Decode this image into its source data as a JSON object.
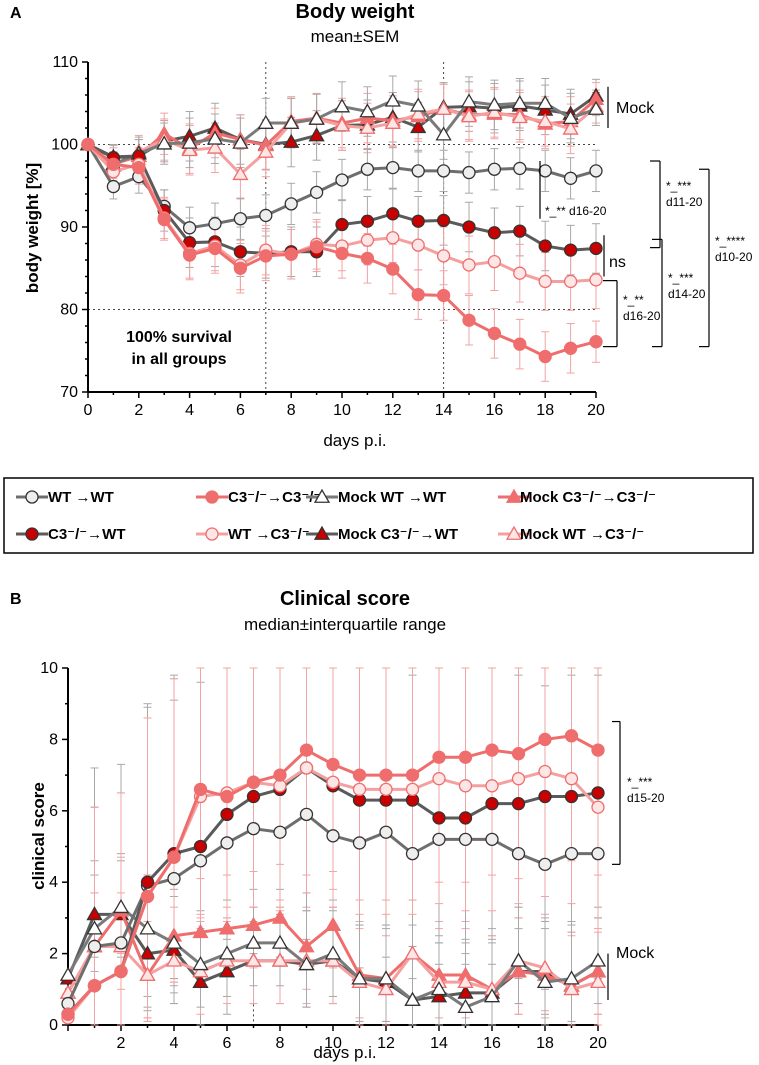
{
  "colors": {
    "wt_wt": "#6e6e6e",
    "c3_wt": "#5a5a5a",
    "c3_c3": "#ef6d6d",
    "wt_c3": "#f4a0a0",
    "mock_wt_wt": "#7a7a7a",
    "mock_c3_wt": "#5a5a5a",
    "mock_c3_c3": "#ef6d6d",
    "mock_wt_c3": "#f4a0a0",
    "dark_red_fill": "#c80000",
    "grey_error": "#a8a8a8"
  },
  "legend": [
    {
      "key": "wt_wt",
      "label": "WT →WT",
      "marker": "circle",
      "fill": "#eeeeee",
      "stroke": "#333333",
      "line": "#6e6e6e"
    },
    {
      "key": "c3_wt",
      "label": "C3⁻/⁻→WT",
      "marker": "circle",
      "fill": "#c80000",
      "stroke": "#333333",
      "line": "#5a5a5a"
    },
    {
      "key": "c3_c3",
      "label": "C3⁻/⁻→C3⁻/⁻",
      "marker": "circle",
      "fill": "#ef6d6d",
      "stroke": "#ef6d6d",
      "line": "#ef6d6d"
    },
    {
      "key": "wt_c3",
      "label": "WT →C3⁻/⁻",
      "marker": "circle",
      "fill": "#fde6e6",
      "stroke": "#ef6d6d",
      "line": "#f4a0a0"
    },
    {
      "key": "mock_wt_wt",
      "label": "Mock WT →WT",
      "marker": "triangle",
      "fill": "#ffffff",
      "stroke": "#333333",
      "line": "#7a7a7a"
    },
    {
      "key": "mock_c3_wt",
      "label": "Mock C3⁻/⁻→WT",
      "marker": "triangle",
      "fill": "#c80000",
      "stroke": "#333333",
      "line": "#5a5a5a"
    },
    {
      "key": "mock_c3_c3",
      "label": "Mock C3⁻/⁻→C3⁻/⁻",
      "marker": "triangle",
      "fill": "#ef6d6d",
      "stroke": "#ef6d6d",
      "line": "#ef6d6d"
    },
    {
      "key": "mock_wt_c3",
      "label": "Mock WT →C3⁻/⁻",
      "marker": "triangle",
      "fill": "#fde6e6",
      "stroke": "#ef6d6d",
      "line": "#f4a0a0"
    }
  ],
  "chart_data": [
    {
      "panel": "A",
      "type": "line",
      "title": "Body weight",
      "subtitle": "mean±SEM",
      "xlabel": "days p.i.",
      "ylabel": "body weight [%]",
      "xlim": [
        0,
        20
      ],
      "ylim": [
        70,
        110
      ],
      "xticks": [
        0,
        2,
        4,
        6,
        8,
        10,
        12,
        14,
        16,
        18,
        20
      ],
      "yticks": [
        70,
        80,
        90,
        100,
        110
      ],
      "x": [
        0,
        1,
        2,
        3,
        4,
        5,
        6,
        7,
        8,
        9,
        10,
        11,
        12,
        13,
        14,
        15,
        16,
        17,
        18,
        19,
        20
      ],
      "reference_lines": {
        "vertical_days": [
          7,
          14
        ],
        "horizontal_values": [
          80,
          100
        ]
      },
      "annotation": "100% survival\nin all groups",
      "series": [
        {
          "key": "mock_c3_wt",
          "name": "Mock C3-/-→WT",
          "values": [
            100,
            98.5,
            98.6,
            100.4,
            101.0,
            102.0,
            100.6,
            100.0,
            100.3,
            101.1,
            102.3,
            102.4,
            103.3,
            102.1,
            104.5,
            104.6,
            104.4,
            104.7,
            104.2,
            103.7,
            105.9
          ],
          "err": [
            0,
            1.5,
            2,
            2.5,
            3,
            3,
            3,
            3,
            3,
            3,
            3,
            3,
            3,
            3,
            3,
            3,
            3,
            3,
            3,
            3,
            2
          ]
        },
        {
          "key": "mock_c3_c3",
          "name": "Mock C3-/-→C3-/-",
          "values": [
            100,
            97.6,
            98.6,
            101.3,
            99.5,
            101.4,
            100.6,
            99.9,
            102.8,
            103.2,
            102.6,
            103.2,
            102.9,
            103.4,
            104.3,
            103.6,
            103.7,
            103.6,
            102.5,
            102.8,
            105.5
          ],
          "err": [
            0,
            1.5,
            2,
            2.5,
            3,
            3,
            3,
            3,
            3,
            3,
            3,
            3,
            3,
            3,
            3,
            3,
            3,
            3,
            3,
            3,
            2
          ]
        },
        {
          "key": "mock_wt_c3",
          "name": "Mock WT→C3-/-",
          "values": [
            100,
            97.4,
            99.1,
            100.6,
            99.3,
            99.6,
            96.4,
            99.1,
            102.6,
            103.1,
            102.3,
            102.0,
            102.6,
            103.7,
            104.3,
            103.4,
            103.9,
            103.3,
            102.8,
            101.9,
            104.6
          ],
          "err": [
            0,
            1.5,
            2,
            2.5,
            3,
            3,
            3,
            3,
            3,
            3,
            3,
            3,
            3,
            3,
            3,
            3,
            3,
            3,
            3,
            3,
            2
          ]
        },
        {
          "key": "mock_wt_wt",
          "name": "Mock WT→WT",
          "values": [
            100,
            97.6,
            98.9,
            100.1,
            100.2,
            100.7,
            100.2,
            102.6,
            102.6,
            103.1,
            104.6,
            104.0,
            105.3,
            104.7,
            101.2,
            105.2,
            104.8,
            105.0,
            105.0,
            103.2,
            104.3
          ],
          "err": [
            0,
            1.5,
            2,
            2.5,
            3,
            3,
            3,
            3,
            3,
            3,
            3,
            3,
            3,
            3,
            3,
            3,
            3,
            3,
            3,
            3,
            2
          ]
        },
        {
          "key": "wt_wt",
          "name": "WT→WT",
          "values": [
            100,
            94.9,
            96.1,
            92.5,
            89.9,
            90.4,
            91.0,
            91.4,
            92.8,
            94.2,
            95.7,
            97.0,
            97.2,
            96.8,
            96.8,
            96.6,
            97.0,
            97.1,
            96.8,
            95.9,
            96.8
          ],
          "err": [
            0,
            1.5,
            2,
            2,
            2.5,
            2.5,
            2.5,
            2.5,
            2.5,
            2.5,
            2.5,
            2.5,
            2.5,
            2.5,
            2.5,
            2.5,
            2.5,
            2.5,
            2.5,
            2.5,
            2.5
          ]
        },
        {
          "key": "c3_wt",
          "name": "C3-/-→WT",
          "values": [
            100,
            98.4,
            98.6,
            92.0,
            88.1,
            88.2,
            87.0,
            86.8,
            87.0,
            87.0,
            90.3,
            90.7,
            91.6,
            90.7,
            90.8,
            90.0,
            89.3,
            89.5,
            87.7,
            87.2,
            87.4
          ],
          "err": [
            0,
            1.5,
            2,
            2.5,
            3,
            3,
            3,
            3,
            3,
            3,
            3,
            3,
            3,
            3,
            3,
            3,
            3,
            3,
            3,
            3,
            3
          ]
        },
        {
          "key": "wt_c3",
          "name": "WT→C3-/-",
          "values": [
            100,
            96.7,
            97.6,
            91.1,
            86.8,
            87.7,
            85.4,
            87.2,
            86.7,
            87.9,
            87.7,
            88.4,
            88.7,
            87.8,
            86.5,
            85.4,
            85.8,
            84.4,
            83.4,
            83.4,
            83.6
          ],
          "err": [
            0,
            2,
            2,
            2.5,
            3,
            3,
            3,
            3,
            3,
            3,
            3,
            3,
            3,
            3,
            3.5,
            3.5,
            3.5,
            3.5,
            3.5,
            3.5,
            3.5
          ]
        },
        {
          "key": "c3_c3",
          "name": "C3-/-→C3-/-",
          "values": [
            100,
            97.6,
            97.2,
            90.9,
            86.6,
            87.4,
            85.0,
            86.5,
            86.7,
            87.6,
            86.8,
            86.2,
            84.9,
            81.8,
            81.7,
            78.7,
            77.1,
            75.8,
            74.3,
            75.3,
            76.1
          ],
          "err": [
            0,
            2,
            2,
            2.5,
            3,
            3,
            3,
            3,
            3,
            3,
            3,
            3,
            3,
            3,
            3,
            3,
            3,
            3,
            3,
            3,
            2.5
          ]
        }
      ],
      "brackets": [
        {
          "label": "Mock",
          "groups": "mock",
          "range": [
            102,
            107
          ]
        },
        {
          "label": "*_** d16-20",
          "range": [
            91,
            98
          ]
        },
        {
          "label": "ns",
          "range": [
            84,
            89
          ]
        },
        {
          "label": "*_**\nd16-20",
          "range": [
            75.5,
            83.5
          ]
        },
        {
          "label": "*_***\nd11-20",
          "range": [
            87.5,
            98
          ]
        },
        {
          "label": "*_***\nd14-20",
          "range": [
            75.5,
            88.5
          ]
        },
        {
          "label": "*_****\nd10-20",
          "range": [
            75.5,
            97
          ]
        }
      ]
    },
    {
      "panel": "B",
      "type": "line",
      "title": "Clinical score",
      "subtitle": "median±interquartile range",
      "xlabel": "days p.i.",
      "ylabel": "clinical score",
      "xlim": [
        0,
        20
      ],
      "ylim": [
        0,
        10
      ],
      "xticks": [
        2,
        4,
        6,
        8,
        10,
        12,
        14,
        16,
        18,
        20
      ],
      "yticks": [
        0,
        2,
        4,
        6,
        8,
        10
      ],
      "x": [
        0,
        1,
        2,
        3,
        4,
        5,
        6,
        7,
        8,
        9,
        10,
        11,
        12,
        13,
        14,
        15,
        16,
        17,
        18,
        19,
        20
      ],
      "reference_lines": {
        "vertical_days": [
          7,
          14
        ]
      },
      "series": [
        {
          "key": "mock_c3_wt",
          "name": "Mock C3-/-→WT",
          "values": [
            1.3,
            3.1,
            3.1,
            2.0,
            2.1,
            1.2,
            1.5,
            1.8,
            1.8,
            1.7,
            1.8,
            1.3,
            1.2,
            0.7,
            0.8,
            0.9,
            0.9,
            1.5,
            1.5,
            1.1,
            1.5
          ]
        },
        {
          "key": "mock_c3_c3",
          "name": "Mock C3-/-→C3-/-",
          "values": [
            0.9,
            2.2,
            3.2,
            1.4,
            2.5,
            2.6,
            2.7,
            2.8,
            3.0,
            2.2,
            2.8,
            1.4,
            1.3,
            2.0,
            1.4,
            1.4,
            1.0,
            1.5,
            1.4,
            1.1,
            1.5
          ]
        },
        {
          "key": "mock_wt_c3",
          "name": "Mock WT→C3-/-",
          "values": [
            0.9,
            2.2,
            2.2,
            1.4,
            1.8,
            1.5,
            1.8,
            1.8,
            1.8,
            1.8,
            1.8,
            1.2,
            1.0,
            2.0,
            1.2,
            1.2,
            1.0,
            1.8,
            1.6,
            1.0,
            1.2
          ]
        },
        {
          "key": "mock_wt_wt",
          "name": "Mock WT→WT",
          "values": [
            1.4,
            2.7,
            3.3,
            2.7,
            2.3,
            1.7,
            2.0,
            2.3,
            2.3,
            1.7,
            2.0,
            1.3,
            1.3,
            0.7,
            1.0,
            0.5,
            0.8,
            1.8,
            1.2,
            1.3,
            1.8
          ]
        },
        {
          "key": "wt_wt",
          "name": "WT→WT",
          "values": [
            0.6,
            2.2,
            2.3,
            3.9,
            4.1,
            4.6,
            5.1,
            5.5,
            5.4,
            5.9,
            5.3,
            5.1,
            5.4,
            4.8,
            5.2,
            5.2,
            5.2,
            4.8,
            4.5,
            4.8,
            4.8
          ]
        },
        {
          "key": "c3_wt",
          "name": "C3-/-→WT",
          "values": [
            0.3,
            1.1,
            1.5,
            4.0,
            4.8,
            5.0,
            5.9,
            6.4,
            6.6,
            7.2,
            6.7,
            6.3,
            6.3,
            6.3,
            5.8,
            5.8,
            6.2,
            6.2,
            6.4,
            6.4,
            6.5
          ]
        },
        {
          "key": "wt_c3",
          "name": "WT→C3-/-",
          "values": [
            0.2,
            1.1,
            1.5,
            3.6,
            4.7,
            6.4,
            6.5,
            6.8,
            6.7,
            7.2,
            6.8,
            6.6,
            6.6,
            6.6,
            6.9,
            6.7,
            6.7,
            6.9,
            7.1,
            6.9,
            6.1
          ]
        },
        {
          "key": "c3_c3",
          "name": "C3-/-→C3-/-",
          "values": [
            0.3,
            1.1,
            1.5,
            3.6,
            4.7,
            6.6,
            6.4,
            6.8,
            7.0,
            7.7,
            7.3,
            7.0,
            7.0,
            7.0,
            7.5,
            7.5,
            7.7,
            7.6,
            8.0,
            8.1,
            7.7
          ]
        }
      ],
      "brackets": [
        {
          "label": "*_***\nd15-20",
          "range": [
            4.5,
            8.5
          ]
        },
        {
          "label": "Mock",
          "range": [
            0.7,
            2.0
          ]
        }
      ]
    }
  ]
}
